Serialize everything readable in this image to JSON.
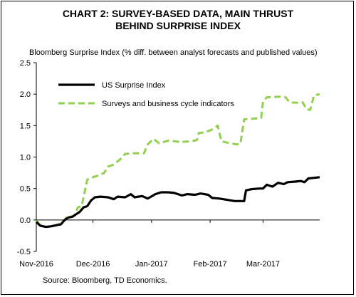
{
  "chart_data": {
    "type": "line",
    "title_lines": [
      "CHART 2: SURVEY-BASED DATA, MAIN THRUST",
      "BEHIND SURPRISE INDEX"
    ],
    "ylabel": "Bloomberg Surprise Index (% diff. between analyst forecasts and published values)",
    "ylim": [
      -0.5,
      2.5
    ],
    "yticks": [
      -0.5,
      0.0,
      0.5,
      1.0,
      1.5,
      2.0,
      2.5
    ],
    "ytick_labels": [
      "-0.5",
      "0.0",
      "0.5",
      "1.0",
      "1.5",
      "2.0",
      "2.5"
    ],
    "xlim": [
      "2016-11-01",
      "2017-03-31"
    ],
    "xticks": [
      "2016-11-01",
      "2016-12-01",
      "2017-01-01",
      "2017-02-01",
      "2017-03-01"
    ],
    "xtick_labels": [
      "Nov-2016",
      "Dec-2016",
      "Jan-2017",
      "Feb-2017",
      "Mar-2017"
    ],
    "legend_position": "top-left",
    "source": "Source: Bloomberg, TD Economics.",
    "series": [
      {
        "name": "US Surprise Index",
        "color": "#000000",
        "style": "solid",
        "points": [
          [
            "2016-11-01",
            -0.03
          ],
          [
            "2016-11-03",
            -0.09
          ],
          [
            "2016-11-06",
            -0.11
          ],
          [
            "2016-11-09",
            -0.1
          ],
          [
            "2016-11-12",
            -0.08
          ],
          [
            "2016-11-14",
            -0.07
          ],
          [
            "2016-11-16",
            0.0
          ],
          [
            "2016-11-18",
            0.04
          ],
          [
            "2016-11-20",
            0.05
          ],
          [
            "2016-11-22",
            0.09
          ],
          [
            "2016-11-24",
            0.13
          ],
          [
            "2016-11-26",
            0.2
          ],
          [
            "2016-11-28",
            0.22
          ],
          [
            "2016-11-30",
            0.31
          ],
          [
            "2016-12-02",
            0.36
          ],
          [
            "2016-12-05",
            0.37
          ],
          [
            "2016-12-09",
            0.36
          ],
          [
            "2016-12-12",
            0.33
          ],
          [
            "2016-12-14",
            0.37
          ],
          [
            "2016-12-18",
            0.36
          ],
          [
            "2016-12-21",
            0.41
          ],
          [
            "2016-12-23",
            0.36
          ],
          [
            "2016-12-27",
            0.38
          ],
          [
            "2016-12-30",
            0.34
          ],
          [
            "2017-01-03",
            0.41
          ],
          [
            "2017-01-06",
            0.44
          ],
          [
            "2017-01-10",
            0.44
          ],
          [
            "2017-01-13",
            0.43
          ],
          [
            "2017-01-17",
            0.39
          ],
          [
            "2017-01-20",
            0.41
          ],
          [
            "2017-01-24",
            0.4
          ],
          [
            "2017-01-27",
            0.42
          ],
          [
            "2017-01-31",
            0.4
          ],
          [
            "2017-02-02",
            0.35
          ],
          [
            "2017-02-06",
            0.34
          ],
          [
            "2017-02-10",
            0.32
          ],
          [
            "2017-02-14",
            0.3
          ],
          [
            "2017-02-17",
            0.3
          ],
          [
            "2017-02-19",
            0.3
          ],
          [
            "2017-02-20",
            0.47
          ],
          [
            "2017-02-23",
            0.49
          ],
          [
            "2017-02-27",
            0.5
          ],
          [
            "2017-03-01",
            0.5
          ],
          [
            "2017-03-03",
            0.56
          ],
          [
            "2017-03-06",
            0.53
          ],
          [
            "2017-03-09",
            0.59
          ],
          [
            "2017-03-12",
            0.57
          ],
          [
            "2017-03-14",
            0.6
          ],
          [
            "2017-03-18",
            0.61
          ],
          [
            "2017-03-21",
            0.62
          ],
          [
            "2017-03-23",
            0.6
          ],
          [
            "2017-03-25",
            0.66
          ],
          [
            "2017-03-28",
            0.67
          ],
          [
            "2017-03-31",
            0.68
          ]
        ]
      },
      {
        "name": "Surveys and business cycle indicators",
        "color": "#92d050",
        "style": "dashed",
        "points": [
          [
            "2016-11-01",
            -0.01
          ],
          [
            "2016-11-03",
            -0.08
          ],
          [
            "2016-11-06",
            -0.11
          ],
          [
            "2016-11-10",
            -0.1
          ],
          [
            "2016-11-14",
            -0.05
          ],
          [
            "2016-11-16",
            -0.01
          ],
          [
            "2016-11-17",
            0.05
          ],
          [
            "2016-11-21",
            0.06
          ],
          [
            "2016-11-23",
            0.2
          ],
          [
            "2016-11-25",
            0.22
          ],
          [
            "2016-11-28",
            0.64
          ],
          [
            "2016-12-01",
            0.68
          ],
          [
            "2016-12-05",
            0.72
          ],
          [
            "2016-12-07",
            0.75
          ],
          [
            "2016-12-09",
            0.85
          ],
          [
            "2016-12-12",
            0.88
          ],
          [
            "2016-12-16",
            0.98
          ],
          [
            "2016-12-18",
            1.05
          ],
          [
            "2016-12-22",
            1.06
          ],
          [
            "2016-12-28",
            1.06
          ],
          [
            "2016-12-30",
            1.2
          ],
          [
            "2017-01-02",
            1.29
          ],
          [
            "2017-01-05",
            1.22
          ],
          [
            "2017-01-10",
            1.26
          ],
          [
            "2017-01-16",
            1.24
          ],
          [
            "2017-01-22",
            1.25
          ],
          [
            "2017-01-25",
            1.27
          ],
          [
            "2017-01-26",
            1.38
          ],
          [
            "2017-01-30",
            1.4
          ],
          [
            "2017-02-03",
            1.45
          ],
          [
            "2017-02-05",
            1.5
          ],
          [
            "2017-02-07",
            1.25
          ],
          [
            "2017-02-10",
            1.23
          ],
          [
            "2017-02-15",
            1.2
          ],
          [
            "2017-02-17",
            1.21
          ],
          [
            "2017-02-19",
            1.6
          ],
          [
            "2017-02-24",
            1.61
          ],
          [
            "2017-02-28",
            1.62
          ],
          [
            "2017-03-01",
            1.88
          ],
          [
            "2017-03-03",
            1.95
          ],
          [
            "2017-03-10",
            1.96
          ],
          [
            "2017-03-13",
            1.95
          ],
          [
            "2017-03-15",
            1.87
          ],
          [
            "2017-03-20",
            1.86
          ],
          [
            "2017-03-22",
            1.87
          ],
          [
            "2017-03-24",
            1.76
          ],
          [
            "2017-03-26",
            1.75
          ],
          [
            "2017-03-28",
            1.98
          ],
          [
            "2017-03-31",
            2.0
          ]
        ]
      }
    ]
  }
}
